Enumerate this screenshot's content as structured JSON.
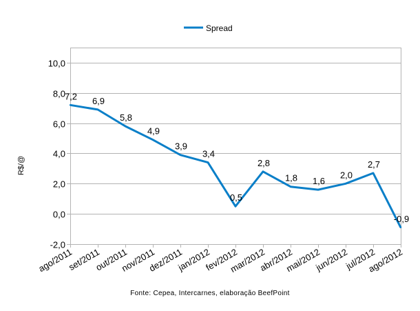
{
  "chart_data": {
    "type": "line",
    "title": "",
    "xlabel": "",
    "ylabel": "R$/@",
    "ylim": [
      -2,
      11
    ],
    "yticks": [
      -2,
      0,
      2,
      4,
      6,
      8,
      10
    ],
    "ytick_labels": [
      "-2,0",
      "0,0",
      "2,0",
      "4,0",
      "6,0",
      "8,0",
      "10,0"
    ],
    "grid": true,
    "legend_position": "top-center",
    "categories": [
      "ago/2011",
      "set/2011",
      "out/2011",
      "nov/2011",
      "dez/2011",
      "jan/2012",
      "fev/2012",
      "mar/2012",
      "abr/2012",
      "mai/2012",
      "jun/2012",
      "jul/2012",
      "ago/2012"
    ],
    "series": [
      {
        "name": "Spread",
        "color": "#0a7fc8",
        "values": [
          7.2,
          6.9,
          5.8,
          4.9,
          3.9,
          3.4,
          0.5,
          2.8,
          1.8,
          1.6,
          2.0,
          2.7,
          -0.9
        ],
        "value_labels": [
          "7,2",
          "6,9",
          "5,8",
          "4,9",
          "3,9",
          "3,4",
          "0,5",
          "2,8",
          "1,8",
          "1,6",
          "2,0",
          "2,7",
          "-0,9"
        ]
      }
    ],
    "source": "Fonte: Cepea, Intercarnes, elaboração BeefPoint"
  }
}
